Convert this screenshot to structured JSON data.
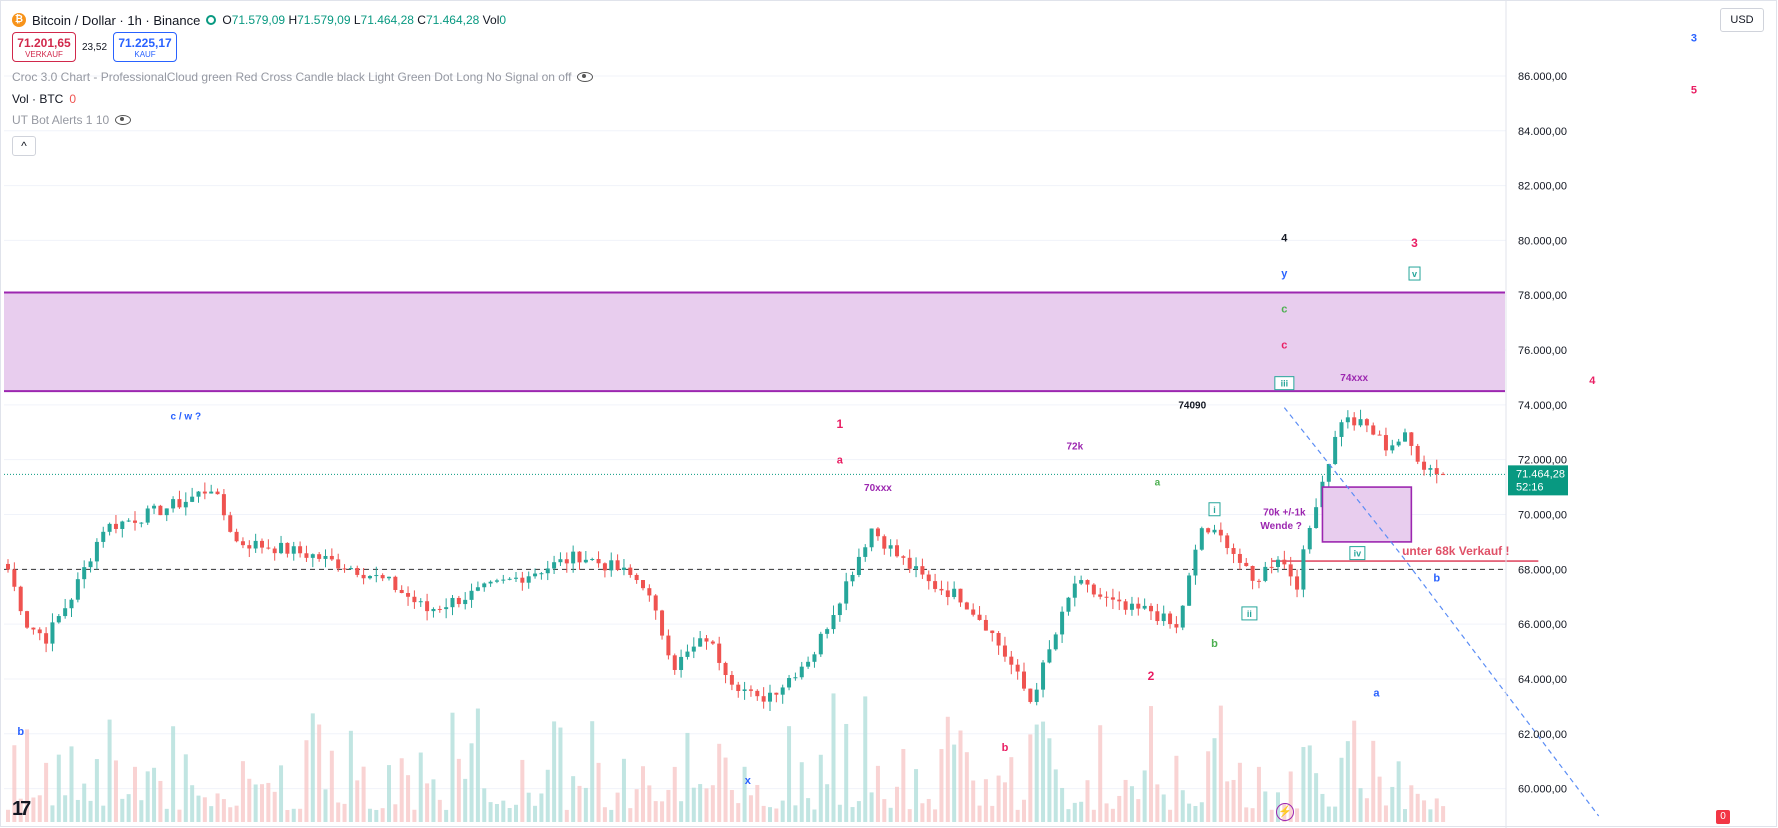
{
  "header": {
    "symbol_title": "Bitcoin / Dollar · 1h · Binance",
    "ohlc": [
      {
        "k": "O",
        "v": "71.579,09"
      },
      {
        "k": "H",
        "v": "71.579,09"
      },
      {
        "k": "L",
        "v": "71.464,28"
      },
      {
        "k": "C",
        "v": "71.464,28"
      },
      {
        "k": "Vol",
        "v": "0"
      }
    ],
    "sell_price": "71.201,65",
    "sell_label": "VERKAUF",
    "spread": "23,52",
    "buy_price": "71.225,17",
    "buy_label": "KAUF",
    "indicator1": "Croc 3.0 Chart - ProfessionalCloud green Red Cross Candle black Light Green Dot Long No Signal on off",
    "indicator2_name": "Vol · BTC",
    "indicator2_value": "0",
    "indicator3": "UT Bot Alerts 1 10",
    "collapse_glyph": "^",
    "currency": "USD",
    "logo": "17",
    "badge": "0"
  },
  "colors": {
    "up": "#26a69a",
    "down": "#ef5350",
    "zone_fill": "#e8cdee",
    "zone_line": "#9c27b0",
    "last_price": "#089981",
    "red_line": "#e05168"
  },
  "chart_data": {
    "type": "candlestick",
    "ylim": [
      59000,
      88000
    ],
    "y_ticks": [
      "86.000,00",
      "84.000,00",
      "82.000,00",
      "80.000,00",
      "78.000,00",
      "76.000,00",
      "74.000,00",
      "72.000,00",
      "70.000,00",
      "68.000,00",
      "66.000,00",
      "64.000,00",
      "62.000,00",
      "60.000,00"
    ],
    "y_tick_values": [
      86000,
      84000,
      82000,
      80000,
      78000,
      76000,
      74000,
      72000,
      70000,
      68000,
      66000,
      64000,
      62000,
      60000
    ],
    "last_price": 71464.28,
    "last_price_label": "71.464,28",
    "countdown": "52:16",
    "dashed_level": 68000,
    "red_level": 68300,
    "zone": {
      "low": 74500,
      "high": 78100
    },
    "path_points": [
      [
        0,
        68000
      ],
      [
        3,
        66000
      ],
      [
        6,
        65500
      ],
      [
        10,
        67000
      ],
      [
        15,
        69500
      ],
      [
        22,
        70000
      ],
      [
        28,
        70500
      ],
      [
        32,
        71000
      ],
      [
        36,
        69000
      ],
      [
        42,
        68800
      ],
      [
        48,
        68500
      ],
      [
        55,
        68000
      ],
      [
        60,
        67500
      ],
      [
        66,
        66500
      ],
      [
        72,
        67000
      ],
      [
        78,
        67500
      ],
      [
        84,
        68000
      ],
      [
        90,
        68500
      ],
      [
        96,
        68000
      ],
      [
        100,
        67500
      ],
      [
        105,
        64500
      ],
      [
        110,
        65500
      ],
      [
        114,
        64000
      ],
      [
        118,
        63200
      ],
      [
        122,
        63800
      ],
      [
        127,
        65000
      ],
      [
        131,
        67000
      ],
      [
        136,
        69500
      ],
      [
        140,
        68500
      ],
      [
        145,
        67500
      ],
      [
        150,
        67000
      ],
      [
        154,
        66000
      ],
      [
        158,
        64500
      ],
      [
        161,
        63200
      ],
      [
        164,
        65000
      ],
      [
        168,
        67500
      ],
      [
        172,
        67000
      ],
      [
        176,
        66500
      ],
      [
        180,
        66500
      ],
      [
        184,
        65800
      ],
      [
        188,
        69500
      ],
      [
        192,
        69000
      ],
      [
        196,
        67500
      ],
      [
        200,
        68500
      ],
      [
        203,
        67500
      ],
      [
        206,
        70500
      ],
      [
        210,
        73500
      ],
      [
        214,
        73200
      ],
      [
        217,
        72500
      ],
      [
        220,
        72800
      ],
      [
        223,
        71800
      ],
      [
        225,
        71600
      ],
      [
        226,
        71464
      ]
    ],
    "annotations": [
      {
        "text": "3",
        "x": 265.5,
        "y": 87300,
        "color": "#2962ff",
        "size": 11
      },
      {
        "text": "5",
        "x": 265.5,
        "y": 85400,
        "color": "#e91e63",
        "size": 11
      },
      {
        "text": "4",
        "x": 201,
        "y": 80000,
        "color": "#131722",
        "size": 11
      },
      {
        "text": "3",
        "x": 221.5,
        "y": 79800,
        "color": "#e91e63",
        "size": 12
      },
      {
        "text": "y",
        "x": 201,
        "y": 78700,
        "color": "#2962ff",
        "size": 11
      },
      {
        "text": "v",
        "x": 221.5,
        "y": 78700,
        "color": "#26a69a",
        "size": 9,
        "box": true
      },
      {
        "text": "c",
        "x": 201,
        "y": 77400,
        "color": "#4caf50",
        "size": 11
      },
      {
        "text": "c",
        "x": 201,
        "y": 76100,
        "color": "#e91e63",
        "size": 11
      },
      {
        "text": "iii",
        "x": 201,
        "y": 74700,
        "color": "#26a69a",
        "size": 9,
        "box": true
      },
      {
        "text": "74xxx",
        "x": 212,
        "y": 74900,
        "color": "#9c27b0",
        "size": 10
      },
      {
        "text": "4",
        "x": 249.5,
        "y": 74800,
        "color": "#e91e63",
        "size": 11
      },
      {
        "text": "74090",
        "x": 186.5,
        "y": 73900,
        "color": "#131722",
        "size": 10
      },
      {
        "text": "c / w ?",
        "x": 28,
        "y": 73500,
        "color": "#2962ff",
        "size": 10
      },
      {
        "text": "1",
        "x": 131,
        "y": 73200,
        "color": "#e91e63",
        "size": 12
      },
      {
        "text": "72k",
        "x": 168,
        "y": 72400,
        "color": "#9c27b0",
        "size": 10
      },
      {
        "text": "a",
        "x": 131,
        "y": 71900,
        "color": "#e91e63",
        "size": 11
      },
      {
        "text": "70xxx",
        "x": 137,
        "y": 70900,
        "color": "#9c27b0",
        "size": 10
      },
      {
        "text": "a",
        "x": 181,
        "y": 71100,
        "color": "#4caf50",
        "size": 10
      },
      {
        "text": "i",
        "x": 190,
        "y": 70100,
        "color": "#26a69a",
        "size": 9,
        "box": true
      },
      {
        "text": "70k +/-1k",
        "x": 201,
        "y": 70000,
        "color": "#9c27b0",
        "size": 10
      },
      {
        "text": "Wende ?",
        "x": 200.5,
        "y": 69500,
        "color": "#9c27b0",
        "size": 10
      },
      {
        "text": "iv",
        "x": 212.5,
        "y": 68500,
        "color": "#26a69a",
        "size": 9,
        "box": true
      },
      {
        "text": "unter 68k Verkauf !",
        "x": 228,
        "y": 68550,
        "color": "#e05168",
        "size": 12
      },
      {
        "text": "b",
        "x": 225,
        "y": 67600,
        "color": "#2962ff",
        "size": 11
      },
      {
        "text": "ii",
        "x": 195.5,
        "y": 66300,
        "color": "#26a69a",
        "size": 9,
        "box": true
      },
      {
        "text": "b",
        "x": 190,
        "y": 65200,
        "color": "#4caf50",
        "size": 11
      },
      {
        "text": "2",
        "x": 180,
        "y": 64000,
        "color": "#e91e63",
        "size": 12
      },
      {
        "text": "a",
        "x": 215.5,
        "y": 63400,
        "color": "#2962ff",
        "size": 11
      },
      {
        "text": "b",
        "x": 2,
        "y": 62000,
        "color": "#2962ff",
        "size": 11
      },
      {
        "text": "b",
        "x": 157,
        "y": 61400,
        "color": "#e91e63",
        "size": 11
      },
      {
        "text": "x",
        "x": 116.5,
        "y": 60200,
        "color": "#2962ff",
        "size": 11
      }
    ],
    "target_box": {
      "x0": 207,
      "x1": 221,
      "low": 69000,
      "high": 71000
    },
    "dashed_projection": [
      [
        201,
        73900
      ],
      [
        219.5,
        68500
      ],
      [
        250.5,
        59000
      ]
    ],
    "grid": true
  }
}
